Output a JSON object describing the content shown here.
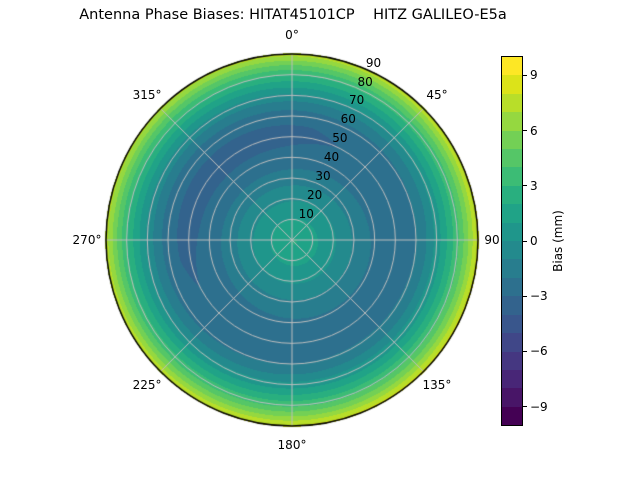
{
  "title": "Antenna Phase Biases: HITAT45101CP    HITZ GALILEO-E5a",
  "chart_data": {
    "type": "heatmap",
    "subtype": "polar-contourf",
    "title": "Antenna Phase Biases: HITAT45101CP    HITZ GALILEO-E5a",
    "antenna": "HITAT45101CP",
    "station_signal": "HITZ GALILEO-E5a",
    "theta_direction": "clockwise",
    "theta_zero_location": "top",
    "theta_ticks": [
      {
        "angle_deg": 0,
        "label": "0°"
      },
      {
        "angle_deg": 45,
        "label": "45°"
      },
      {
        "angle_deg": 90,
        "label": "90"
      },
      {
        "angle_deg": 135,
        "label": "135°"
      },
      {
        "angle_deg": 180,
        "label": "180°"
      },
      {
        "angle_deg": 225,
        "label": "225°"
      },
      {
        "angle_deg": 270,
        "label": "270°"
      },
      {
        "angle_deg": 315,
        "label": "315°"
      }
    ],
    "r_ticks": [
      10,
      20,
      30,
      40,
      50,
      60,
      70,
      80,
      90
    ],
    "r_range": [
      0,
      90
    ],
    "levels_mm": {
      "min": -10,
      "max": 10,
      "step": 1
    },
    "colormap": "viridis",
    "palette_20": [
      "#440154",
      "#481567",
      "#482677",
      "#453781",
      "#404788",
      "#39568c",
      "#33638d",
      "#2d708e",
      "#287d8e",
      "#238a8d",
      "#1f968b",
      "#20a387",
      "#29af7f",
      "#3cbc75",
      "#55c667",
      "#73d055",
      "#95d840",
      "#b8de29",
      "#dce319",
      "#fde725"
    ],
    "radial_profile": {
      "zenith_deg": [
        0,
        5,
        10,
        15,
        20,
        25,
        30,
        35,
        40,
        45,
        50,
        55,
        60,
        65,
        70,
        75,
        80,
        85,
        90
      ],
      "bias_mm": [
        2.05,
        1.7,
        1.15,
        0.6,
        0.0,
        -0.65,
        -1.3,
        -1.9,
        -2.4,
        -2.75,
        -2.9,
        -2.8,
        -2.25,
        -1.3,
        0.1,
        1.7,
        3.4,
        5.5,
        7.9
      ]
    },
    "azimuthal_variation": {
      "amplitude_mm": 0.5,
      "brightest_azimuth_deg": 135,
      "center_weight": 0.25
    },
    "colorbar": {
      "label": "Bias (mm)",
      "tick_labels": [
        "9",
        "6",
        "3",
        "0",
        "−3",
        "−6",
        "−9"
      ],
      "tick_values": [
        9,
        6,
        3,
        0,
        -3,
        -6,
        -9
      ],
      "value_min": -10,
      "value_max": 10
    }
  },
  "style": {
    "background": "#ffffff",
    "grid_color": "#bfbfbf",
    "spine_color": "#000000",
    "text_color": "#000000"
  }
}
